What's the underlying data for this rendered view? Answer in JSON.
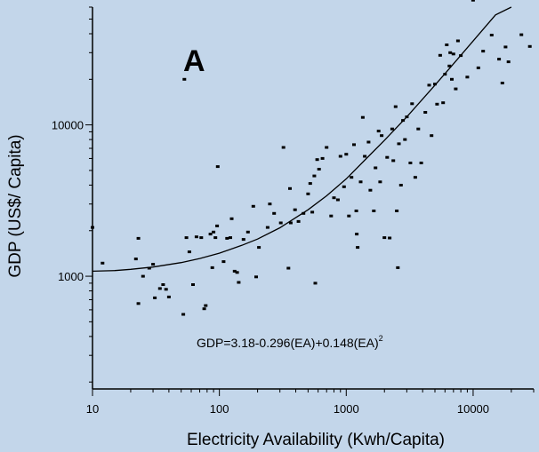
{
  "chart_data": {
    "type": "scatter",
    "title": "",
    "panel_label": "A",
    "xlabel": "Electricity Availability (Kwh/Capita)",
    "ylabel": "GDP (US$/ Capita)",
    "x_scale": "log",
    "y_scale": "log",
    "xlim": [
      10,
      30000
    ],
    "ylim": [
      180,
      60000
    ],
    "x_ticks": [
      {
        "value": 10,
        "label": "10"
      },
      {
        "value": 100,
        "label": "100"
      },
      {
        "value": 1000,
        "label": "1000"
      },
      {
        "value": 10000,
        "label": "10000"
      }
    ],
    "y_ticks": [
      {
        "value": 1000,
        "label": "1000"
      },
      {
        "value": 10000,
        "label": "10000"
      }
    ],
    "grid": false,
    "legend": "none",
    "equation": {
      "text": "GDP=3.18-0.296(EA)+0.148(EA)",
      "superscript": "2"
    },
    "colors": {
      "background": "#c3d6ea",
      "points": "#000000",
      "fit_line": "#000000"
    },
    "fit_curve": {
      "name": "",
      "points": [
        [
          10,
          1080
        ],
        [
          15,
          1090
        ],
        [
          20,
          1110
        ],
        [
          30,
          1150
        ],
        [
          50,
          1230
        ],
        [
          70,
          1310
        ],
        [
          100,
          1420
        ],
        [
          150,
          1600
        ],
        [
          200,
          1760
        ],
        [
          300,
          2090
        ],
        [
          500,
          2750
        ],
        [
          700,
          3400
        ],
        [
          1000,
          4400
        ],
        [
          1500,
          6200
        ],
        [
          2000,
          7900
        ],
        [
          3000,
          11300
        ],
        [
          5000,
          18300
        ],
        [
          7000,
          25300
        ],
        [
          10000,
          35800
        ],
        [
          15000,
          53300
        ],
        [
          20000,
          60000
        ]
      ]
    },
    "points": [
      [
        10,
        2100
      ],
      [
        12,
        1220
      ],
      [
        22,
        1300
      ],
      [
        23,
        1780
      ],
      [
        23,
        660
      ],
      [
        25,
        1000
      ],
      [
        28,
        1130
      ],
      [
        30,
        1200
      ],
      [
        31,
        720
      ],
      [
        34,
        830
      ],
      [
        36,
        880
      ],
      [
        38,
        820
      ],
      [
        40,
        730
      ],
      [
        52,
        560
      ],
      [
        53,
        20000
      ],
      [
        55,
        1800
      ],
      [
        58,
        1450
      ],
      [
        62,
        880
      ],
      [
        66,
        1820
      ],
      [
        72,
        1800
      ],
      [
        76,
        610
      ],
      [
        78,
        640
      ],
      [
        85,
        1900
      ],
      [
        88,
        1140
      ],
      [
        90,
        1960
      ],
      [
        93,
        1800
      ],
      [
        96,
        2150
      ],
      [
        97,
        5300
      ],
      [
        108,
        1250
      ],
      [
        115,
        1780
      ],
      [
        122,
        1800
      ],
      [
        125,
        2400
      ],
      [
        132,
        1080
      ],
      [
        138,
        1060
      ],
      [
        142,
        910
      ],
      [
        155,
        1750
      ],
      [
        168,
        1960
      ],
      [
        185,
        2900
      ],
      [
        195,
        990
      ],
      [
        205,
        1550
      ],
      [
        240,
        2100
      ],
      [
        250,
        3000
      ],
      [
        270,
        2600
      ],
      [
        305,
        2250
      ],
      [
        320,
        7100
      ],
      [
        350,
        1130
      ],
      [
        360,
        3800
      ],
      [
        365,
        2250
      ],
      [
        395,
        2750
      ],
      [
        420,
        2300
      ],
      [
        460,
        2600
      ],
      [
        500,
        3500
      ],
      [
        520,
        4100
      ],
      [
        540,
        2650
      ],
      [
        560,
        4600
      ],
      [
        570,
        900
      ],
      [
        590,
        5900
      ],
      [
        610,
        5100
      ],
      [
        650,
        6000
      ],
      [
        700,
        7100
      ],
      [
        760,
        2500
      ],
      [
        800,
        3300
      ],
      [
        860,
        3200
      ],
      [
        900,
        6200
      ],
      [
        960,
        3900
      ],
      [
        1000,
        6400
      ],
      [
        1050,
        2500
      ],
      [
        1100,
        4500
      ],
      [
        1150,
        7400
      ],
      [
        1200,
        2700
      ],
      [
        1210,
        1900
      ],
      [
        1230,
        1550
      ],
      [
        1300,
        4200
      ],
      [
        1350,
        11200
      ],
      [
        1400,
        6200
      ],
      [
        1500,
        7700
      ],
      [
        1550,
        3700
      ],
      [
        1650,
        2700
      ],
      [
        1700,
        5200
      ],
      [
        1800,
        9100
      ],
      [
        1850,
        4200
      ],
      [
        1900,
        8500
      ],
      [
        2000,
        1800
      ],
      [
        2100,
        6100
      ],
      [
        2200,
        1790
      ],
      [
        2300,
        9400
      ],
      [
        2350,
        5800
      ],
      [
        2450,
        13200
      ],
      [
        2500,
        2700
      ],
      [
        2550,
        1140
      ],
      [
        2600,
        7500
      ],
      [
        2700,
        4000
      ],
      [
        2800,
        10700
      ],
      [
        2900,
        8000
      ],
      [
        3000,
        11300
      ],
      [
        3200,
        5600
      ],
      [
        3300,
        13800
      ],
      [
        3500,
        4500
      ],
      [
        3700,
        9400
      ],
      [
        3900,
        5600
      ],
      [
        4200,
        12100
      ],
      [
        4500,
        18300
      ],
      [
        4700,
        8500
      ],
      [
        5000,
        18600
      ],
      [
        5200,
        13700
      ],
      [
        5500,
        28800
      ],
      [
        5800,
        14000
      ],
      [
        6000,
        21600
      ],
      [
        6200,
        33800
      ],
      [
        6500,
        24500
      ],
      [
        6600,
        30000
      ],
      [
        6800,
        20000
      ],
      [
        7000,
        29400
      ],
      [
        7300,
        17300
      ],
      [
        7600,
        35900
      ],
      [
        8000,
        28700
      ],
      [
        9000,
        20700
      ],
      [
        10000,
        66700
      ],
      [
        11000,
        23800
      ],
      [
        12000,
        30700
      ],
      [
        14000,
        39200
      ],
      [
        16000,
        27200
      ],
      [
        17000,
        18900
      ],
      [
        18000,
        32700
      ],
      [
        19000,
        26100
      ],
      [
        24000,
        39400
      ],
      [
        28000,
        33000
      ]
    ]
  }
}
